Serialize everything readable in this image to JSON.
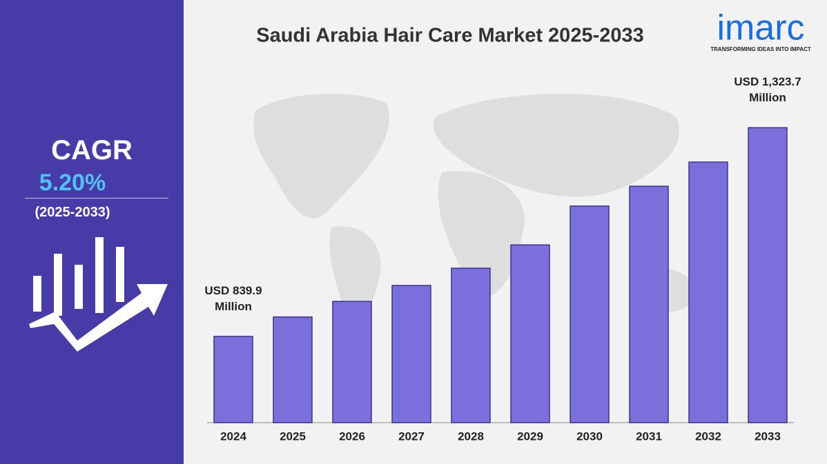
{
  "chart_data": {
    "type": "bar",
    "title": "Saudi Arabia Hair Care Market 2025-2033",
    "categories": [
      "2024",
      "2025",
      "2026",
      "2027",
      "2028",
      "2029",
      "2030",
      "2031",
      "2032",
      "2033"
    ],
    "values": [
      839.9,
      885,
      921,
      958,
      998,
      1052,
      1142,
      1188,
      1244,
      1323.7
    ],
    "value_labels": [
      "USD 839.9 Million",
      null,
      null,
      null,
      null,
      null,
      null,
      null,
      null,
      "USD 1,323.7 Million"
    ],
    "color": "#7b70db",
    "ylim": [
      640,
      1340
    ]
  },
  "sidebar": {
    "cagr_label": "CAGR",
    "cagr_value": "5.20%",
    "period": "(2025-2033)"
  },
  "logo": {
    "name": "imarc",
    "tagline": "TRANSFORMING IDEAS INTO IMPACT"
  }
}
